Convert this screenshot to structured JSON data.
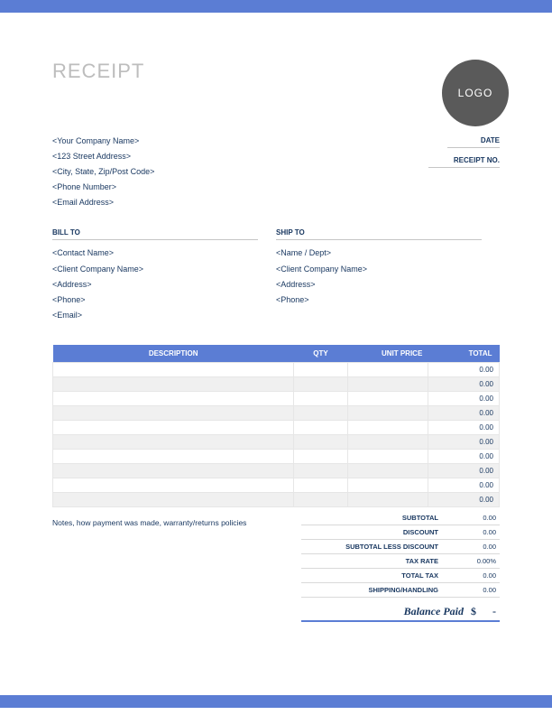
{
  "colors": {
    "accent": "#5b7dd4",
    "text": "#17365f",
    "title_gray": "#bdbdbd",
    "logo_bg": "#5a5a5a",
    "row_alt": "#f0f0f0",
    "border_light": "#e6e6e6",
    "divider": "#c5c5c5"
  },
  "title": "RECEIPT",
  "logo_text": "LOGO",
  "company": {
    "name": "<Your Company Name>",
    "street": "<123 Street Address>",
    "city": "<City, State, Zip/Post Code>",
    "phone": "<Phone Number>",
    "email": "<Email Address>"
  },
  "meta": {
    "date_label": "DATE",
    "receipt_no_label": "RECEIPT NO."
  },
  "bill_to": {
    "heading": "BILL TO",
    "contact": "<Contact Name>",
    "company": "<Client Company Name>",
    "address": "<Address>",
    "phone": "<Phone>",
    "email": "<Email>"
  },
  "ship_to": {
    "heading": "SHIP TO",
    "name": "<Name / Dept>",
    "company": "<Client Company Name>",
    "address": "<Address>",
    "phone": "<Phone>"
  },
  "columns": {
    "description": "DESCRIPTION",
    "qty": "QTY",
    "unit_price": "UNIT PRICE",
    "total": "TOTAL"
  },
  "rows": [
    {
      "desc": "",
      "qty": "",
      "unit": "",
      "total": "0.00"
    },
    {
      "desc": "",
      "qty": "",
      "unit": "",
      "total": "0.00"
    },
    {
      "desc": "",
      "qty": "",
      "unit": "",
      "total": "0.00"
    },
    {
      "desc": "",
      "qty": "",
      "unit": "",
      "total": "0.00"
    },
    {
      "desc": "",
      "qty": "",
      "unit": "",
      "total": "0.00"
    },
    {
      "desc": "",
      "qty": "",
      "unit": "",
      "total": "0.00"
    },
    {
      "desc": "",
      "qty": "",
      "unit": "",
      "total": "0.00"
    },
    {
      "desc": "",
      "qty": "",
      "unit": "",
      "total": "0.00"
    },
    {
      "desc": "",
      "qty": "",
      "unit": "",
      "total": "0.00"
    },
    {
      "desc": "",
      "qty": "",
      "unit": "",
      "total": "0.00"
    }
  ],
  "notes": "Notes, how payment was made, warranty/returns policies",
  "totals": {
    "subtotal_label": "SUBTOTAL",
    "subtotal": "0.00",
    "discount_label": "DISCOUNT",
    "discount": "0.00",
    "subtotal_less_label": "SUBTOTAL LESS DISCOUNT",
    "subtotal_less": "0.00",
    "tax_rate_label": "TAX RATE",
    "tax_rate": "0.00%",
    "total_tax_label": "TOTAL TAX",
    "total_tax": "0.00",
    "shipping_label": "SHIPPING/HANDLING",
    "shipping": "0.00"
  },
  "balance": {
    "label": "Balance Paid",
    "currency": "$",
    "value": "-"
  }
}
